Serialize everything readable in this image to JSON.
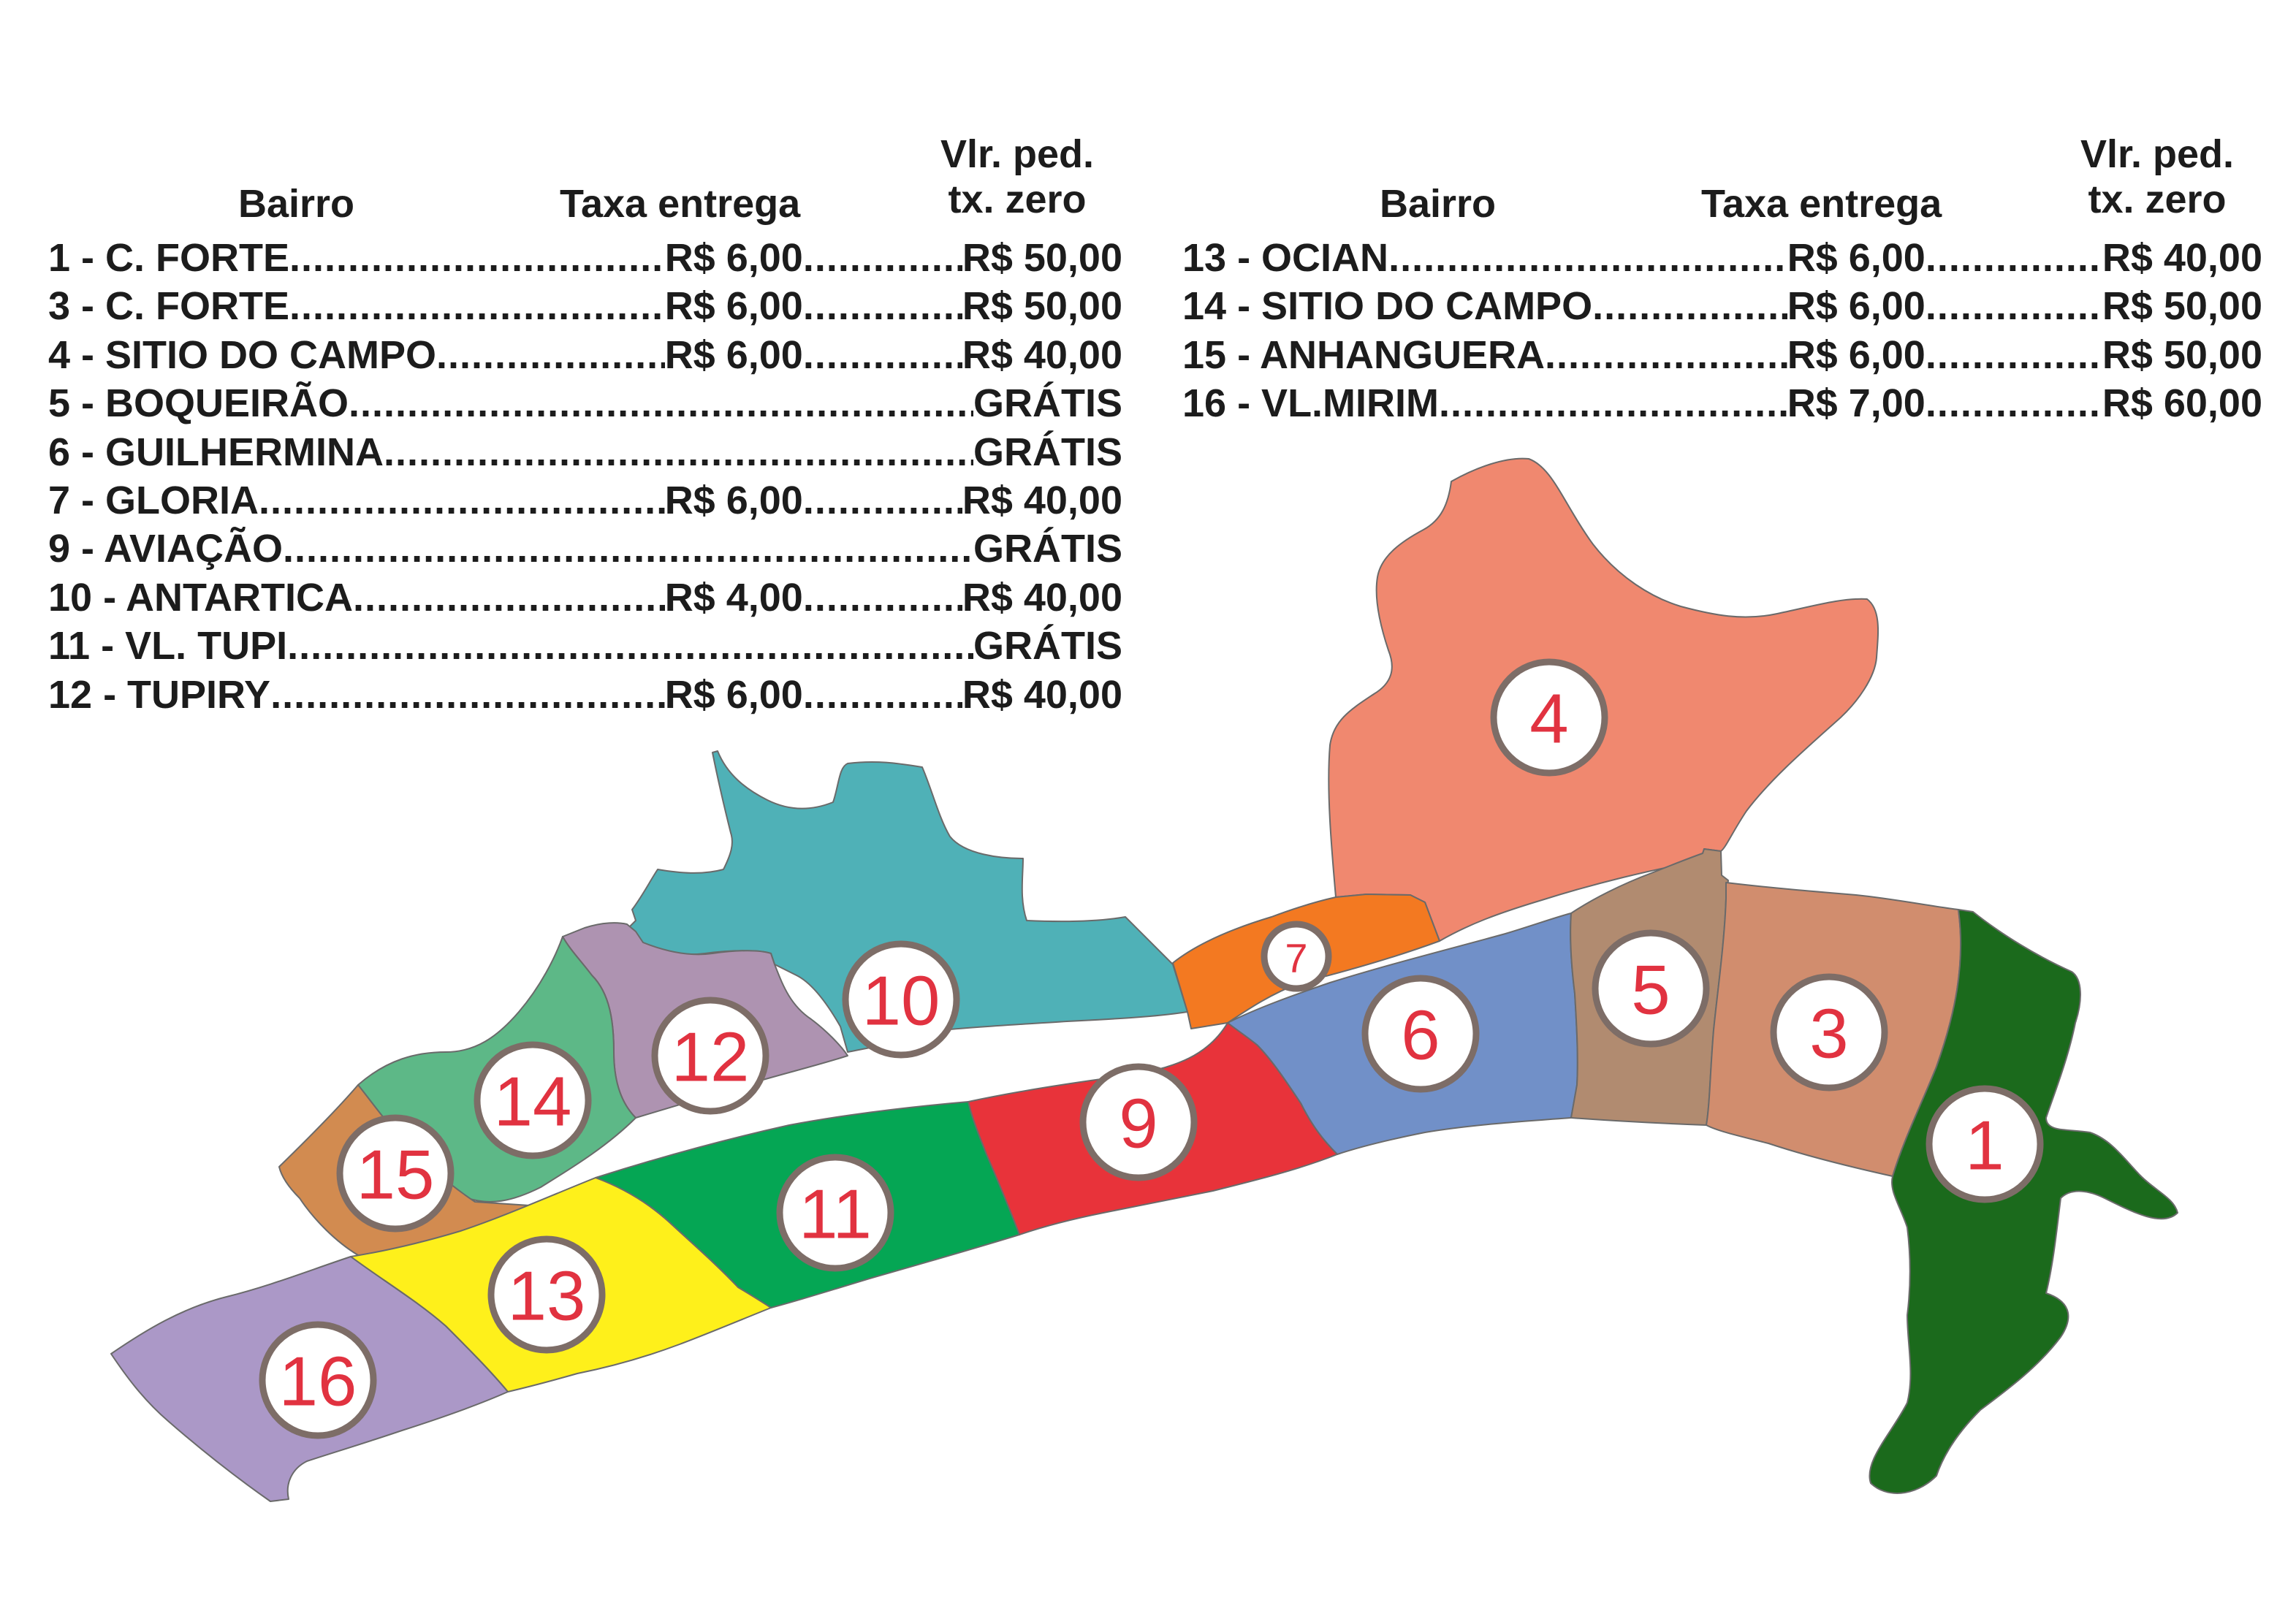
{
  "tables": {
    "left": {
      "headers": {
        "bairro": "Bairro",
        "taxa": "Taxa entrega",
        "vlr_line1": "Vlr. ped.",
        "vlr_line2": "tx. zero"
      },
      "rows": [
        {
          "bairro": "1 - C. FORTE",
          "fee": "R$ 6,00",
          "zero": "R$ 50,00"
        },
        {
          "bairro": "3 - C. FORTE",
          "fee": "R$ 6,00",
          "zero": "R$ 50,00"
        },
        {
          "bairro": "4 - SITIO DO CAMPO",
          "fee": "R$ 6,00",
          "zero": "R$ 40,00"
        },
        {
          "bairro": "5 - BOQUEIRÃO",
          "fee": "",
          "zero": "GRÁTIS"
        },
        {
          "bairro": "6 - GUILHERMINA",
          "fee": "",
          "zero": "GRÁTIS"
        },
        {
          "bairro": "7 - GLORIA",
          "fee": "R$ 6,00",
          "zero": "R$ 40,00"
        },
        {
          "bairro": "9 - AVIAÇÃO",
          "fee": "",
          "zero": "GRÁTIS"
        },
        {
          "bairro": "10 - ANTARTICA",
          "fee": "R$ 4,00",
          "zero": "R$ 40,00"
        },
        {
          "bairro": "11 - VL. TUPI",
          "fee": "",
          "zero": "GRÁTIS"
        },
        {
          "bairro": "12 - TUPIRY",
          "fee": "R$ 6,00",
          "zero": "R$ 40,00"
        }
      ]
    },
    "right": {
      "headers": {
        "bairro": "Bairro",
        "taxa": "Taxa entrega",
        "vlr_line1": "Vlr. ped.",
        "vlr_line2": "tx. zero"
      },
      "rows": [
        {
          "bairro": "13 - OCIAN",
          "fee": "R$ 6,00",
          "zero": "R$ 40,00"
        },
        {
          "bairro": "14 - SITIO DO CAMPO",
          "fee": "R$ 6,00",
          "zero": "R$ 50,00"
        },
        {
          "bairro": "15 - ANHANGUERA",
          "fee": "R$ 6,00",
          "zero": "R$ 50,00"
        },
        {
          "bairro": "16 - VL.MIRIM",
          "fee": "R$ 7,00",
          "zero": "R$ 60,00"
        }
      ]
    }
  },
  "map": {
    "regions": [
      {
        "id": "1",
        "color": "#1b6a1c"
      },
      {
        "id": "3",
        "color": "#d18d6e"
      },
      {
        "id": "4",
        "color": "#f0886f"
      },
      {
        "id": "5",
        "color": "#b18b70"
      },
      {
        "id": "6",
        "color": "#7190c8"
      },
      {
        "id": "7",
        "color": "#f37921"
      },
      {
        "id": "9",
        "color": "#e8333a"
      },
      {
        "id": "10",
        "color": "#4fb1b7"
      },
      {
        "id": "11",
        "color": "#05a654"
      },
      {
        "id": "12",
        "color": "#ae93b1"
      },
      {
        "id": "13",
        "color": "#fef01b"
      },
      {
        "id": "14",
        "color": "#5db887"
      },
      {
        "id": "15",
        "color": "#d28b50"
      },
      {
        "id": "16",
        "color": "#ab98c7"
      }
    ],
    "marker_label_color": "#e13240",
    "marker_ring_color": "#7d6d67"
  }
}
